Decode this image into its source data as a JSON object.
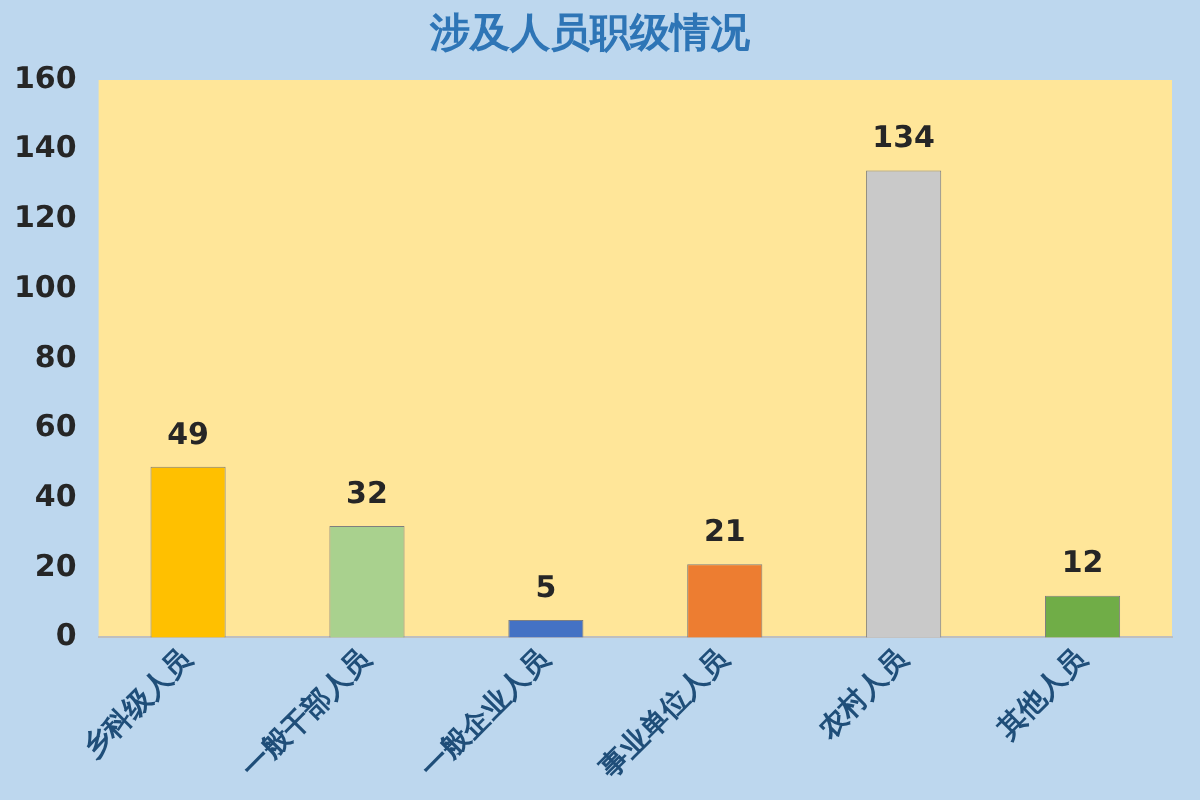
{
  "chart_data": {
    "type": "bar",
    "title": "涉及人员职级情况",
    "categories": [
      "乡科级人员",
      "一般干部人员",
      "一般企业人员",
      "事业单位人员",
      "农村人员",
      "其他人员"
    ],
    "values": [
      49,
      32,
      5,
      21,
      134,
      12
    ],
    "colors": [
      "#ffc000",
      "#a9d18e",
      "#4472c4",
      "#ed7d31",
      "#c9c9c9",
      "#70ad47"
    ],
    "ylim": [
      0,
      160
    ],
    "yticks": [
      0,
      20,
      40,
      60,
      80,
      100,
      120,
      140,
      160
    ],
    "grid": false,
    "legend": false,
    "data_labels": true
  }
}
